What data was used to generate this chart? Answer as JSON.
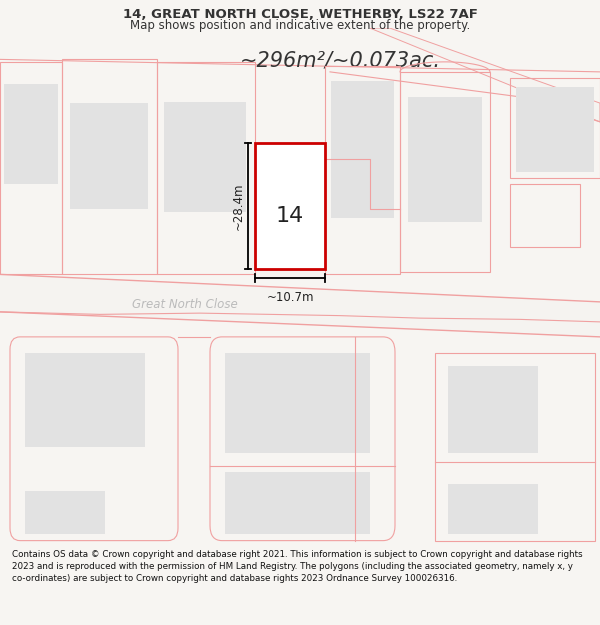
{
  "title_line1": "14, GREAT NORTH CLOSE, WETHERBY, LS22 7AF",
  "title_line2": "Map shows position and indicative extent of the property.",
  "area_label": "~296m²/~0.073ac.",
  "street_name": "Great North Close",
  "dim_width": "~10.7m",
  "dim_height": "~28.4m",
  "plot_number": "14",
  "footer_text": "Contains OS data © Crown copyright and database right 2021. This information is subject to Crown copyright and database rights 2023 and is reproduced with the permission of HM Land Registry. The polygons (including the associated geometry, namely x, y co-ordinates) are subject to Crown copyright and database rights 2023 Ordnance Survey 100026316.",
  "bg_color": "#f7f5f2",
  "map_bg": "#ffffff",
  "plot_fill": "#ffffff",
  "plot_border": "#cc0000",
  "neighbor_stroke": "#f0a0a0",
  "building_fill": "#e2e2e2",
  "text_dark": "#333333",
  "text_gray": "#aaaaaa",
  "road_fill": "#f5f3f0"
}
